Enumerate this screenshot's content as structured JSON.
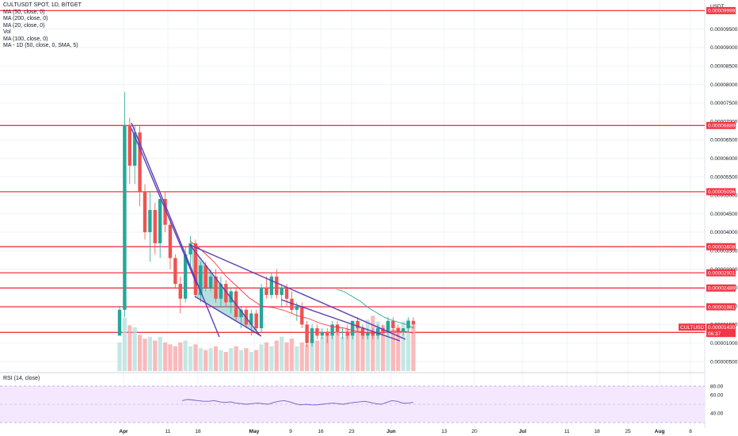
{
  "header": {
    "symbol_line": "CULTUSDT SPOT, 1D, BITGET",
    "indicators": [
      "MA (50, close, 0)",
      "MA (200, close, 0)",
      "MA (20, close, 0)",
      "Vol",
      "MA (100, close, 0)",
      "MA - 1D (50, close, 0, SMA, 5)"
    ],
    "currency": "USDT"
  },
  "rsi": {
    "label": "RSI (14, close)",
    "ticks": [
      "80.00",
      "60.00",
      "40.00"
    ]
  },
  "price_label": {
    "symbol": "CULTUSDT",
    "price": "0.00001430",
    "countdown": "06:37"
  },
  "colors": {
    "up": "#26a69a",
    "down": "#ef5350",
    "hline": "#f23645",
    "trendline": "#5b3fb5",
    "ma_red": "#f23645",
    "ma_teal": "#26a69a",
    "rsi_band": "#f3e8ff",
    "rsi_line": "#7e57c2"
  },
  "chart_data": {
    "type": "candlestick",
    "y_axis_ticks": [
      "0.00009500",
      "0.00009000",
      "0.00008500",
      "0.00008000",
      "0.00007500",
      "0.00007000",
      "0.00006500",
      "0.00006000",
      "0.00005500",
      "0.00005000",
      "0.00004500",
      "0.00004000",
      "0.00003500",
      "0.00003000",
      "0.00002500",
      "0.00002000",
      "0.00001500",
      "0.00001000",
      "0.00000500"
    ],
    "ylim": [
      3.5e-06,
      0.0001005
    ],
    "x_axis_ticks": [
      "Apr",
      "11",
      "18",
      "May",
      "9",
      "16",
      "23",
      "Jun",
      "13",
      "20",
      "Jul",
      "11",
      "18",
      "25",
      "Aug",
      "8"
    ],
    "horizontal_levels": [
      "0.00009999",
      "0.00006889",
      "0.00005096",
      "0.00003608",
      "0.00002901",
      "0.00002489",
      "0.00001981",
      "0.00001288"
    ],
    "candles": [
      {
        "o": 1.2,
        "h": 2.0,
        "l": 1.2,
        "c": 1.9
      },
      {
        "o": 1.9,
        "h": 7.8,
        "l": 1.7,
        "c": 6.9
      },
      {
        "o": 6.9,
        "h": 7.1,
        "l": 5.3,
        "c": 5.8
      },
      {
        "o": 5.8,
        "h": 6.9,
        "l": 5.3,
        "c": 6.7
      },
      {
        "o": 6.7,
        "h": 6.9,
        "l": 4.7,
        "c": 5.1
      },
      {
        "o": 5.1,
        "h": 5.3,
        "l": 3.8,
        "c": 4.0
      },
      {
        "o": 4.0,
        "h": 5.1,
        "l": 3.2,
        "c": 4.6
      },
      {
        "o": 4.6,
        "h": 4.8,
        "l": 3.4,
        "c": 3.7
      },
      {
        "o": 3.7,
        "h": 4.9,
        "l": 3.3,
        "c": 4.9
      },
      {
        "o": 4.9,
        "h": 5.1,
        "l": 4.0,
        "c": 4.2
      },
      {
        "o": 4.2,
        "h": 4.4,
        "l": 3.0,
        "c": 3.3
      },
      {
        "o": 3.3,
        "h": 3.4,
        "l": 2.5,
        "c": 2.6
      },
      {
        "o": 2.6,
        "h": 2.8,
        "l": 1.8,
        "c": 2.2
      },
      {
        "o": 2.2,
        "h": 3.6,
        "l": 2.1,
        "c": 3.4
      },
      {
        "o": 3.4,
        "h": 3.9,
        "l": 3.1,
        "c": 3.7
      },
      {
        "o": 3.7,
        "h": 3.8,
        "l": 2.3,
        "c": 2.3
      },
      {
        "o": 2.3,
        "h": 3.2,
        "l": 2.1,
        "c": 3.1
      },
      {
        "o": 3.1,
        "h": 3.2,
        "l": 2.4,
        "c": 2.5
      },
      {
        "o": 2.5,
        "h": 3.0,
        "l": 2.4,
        "c": 2.8
      },
      {
        "o": 2.8,
        "h": 3.0,
        "l": 2.1,
        "c": 2.2
      },
      {
        "o": 2.2,
        "h": 2.8,
        "l": 2.0,
        "c": 2.6
      },
      {
        "o": 2.6,
        "h": 2.7,
        "l": 2.0,
        "c": 2.1
      },
      {
        "o": 2.1,
        "h": 2.5,
        "l": 1.8,
        "c": 2.4
      },
      {
        "o": 2.4,
        "h": 2.5,
        "l": 1.6,
        "c": 1.7
      },
      {
        "o": 1.7,
        "h": 2.0,
        "l": 1.4,
        "c": 1.9
      },
      {
        "o": 1.9,
        "h": 2.0,
        "l": 1.4,
        "c": 1.5
      },
      {
        "o": 1.5,
        "h": 1.9,
        "l": 1.2,
        "c": 1.8
      },
      {
        "o": 1.8,
        "h": 1.9,
        "l": 1.3,
        "c": 1.4
      },
      {
        "o": 1.4,
        "h": 2.6,
        "l": 1.3,
        "c": 2.5
      },
      {
        "o": 2.5,
        "h": 2.8,
        "l": 2.2,
        "c": 2.3
      },
      {
        "o": 2.3,
        "h": 2.9,
        "l": 2.2,
        "c": 2.8
      },
      {
        "o": 2.8,
        "h": 3.0,
        "l": 2.2,
        "c": 2.3
      },
      {
        "o": 2.3,
        "h": 2.6,
        "l": 2.0,
        "c": 2.5
      },
      {
        "o": 2.5,
        "h": 2.6,
        "l": 2.0,
        "c": 2.2
      },
      {
        "o": 2.2,
        "h": 2.4,
        "l": 1.8,
        "c": 1.9
      },
      {
        "o": 1.9,
        "h": 2.1,
        "l": 1.6,
        "c": 2.0
      },
      {
        "o": 2.0,
        "h": 2.1,
        "l": 1.4,
        "c": 1.5
      },
      {
        "o": 1.5,
        "h": 1.6,
        "l": 0.9,
        "c": 1.0
      },
      {
        "o": 1.0,
        "h": 1.5,
        "l": 0.9,
        "c": 1.4
      },
      {
        "o": 1.4,
        "h": 1.5,
        "l": 1.1,
        "c": 1.2
      },
      {
        "o": 1.2,
        "h": 1.4,
        "l": 1.1,
        "c": 1.3
      },
      {
        "o": 1.3,
        "h": 1.4,
        "l": 1.0,
        "c": 1.2
      },
      {
        "o": 1.2,
        "h": 1.6,
        "l": 1.1,
        "c": 1.5
      },
      {
        "o": 1.5,
        "h": 1.6,
        "l": 1.2,
        "c": 1.3
      },
      {
        "o": 1.3,
        "h": 1.4,
        "l": 1.1,
        "c": 1.3
      },
      {
        "o": 1.3,
        "h": 1.5,
        "l": 1.1,
        "c": 1.2
      },
      {
        "o": 1.2,
        "h": 1.6,
        "l": 1.1,
        "c": 1.6
      },
      {
        "o": 1.6,
        "h": 1.7,
        "l": 1.3,
        "c": 1.4
      },
      {
        "o": 1.4,
        "h": 1.5,
        "l": 1.1,
        "c": 1.2
      },
      {
        "o": 1.2,
        "h": 1.4,
        "l": 1.1,
        "c": 1.3
      },
      {
        "o": 1.3,
        "h": 1.4,
        "l": 1.1,
        "c": 1.2
      },
      {
        "o": 1.2,
        "h": 1.5,
        "l": 1.1,
        "c": 1.4
      },
      {
        "o": 1.4,
        "h": 1.5,
        "l": 1.2,
        "c": 1.3
      },
      {
        "o": 1.3,
        "h": 1.7,
        "l": 1.2,
        "c": 1.6
      },
      {
        "o": 1.6,
        "h": 1.7,
        "l": 1.3,
        "c": 1.4
      },
      {
        "o": 1.4,
        "h": 1.5,
        "l": 1.2,
        "c": 1.3
      },
      {
        "o": 1.3,
        "h": 1.4,
        "l": 1.2,
        "c": 1.4
      },
      {
        "o": 1.4,
        "h": 1.7,
        "l": 1.3,
        "c": 1.6
      },
      {
        "o": 1.6,
        "h": 1.7,
        "l": 1.4,
        "c": 1.5
      }
    ],
    "volume": [
      0.3,
      0.56,
      0.48,
      0.46,
      0.38,
      0.34,
      0.36,
      0.32,
      0.36,
      0.3,
      0.28,
      0.26,
      0.3,
      0.32,
      0.26,
      0.28,
      0.24,
      0.22,
      0.24,
      0.26,
      0.22,
      0.2,
      0.24,
      0.26,
      0.22,
      0.24,
      0.2,
      0.22,
      0.28,
      0.3,
      0.26,
      0.32,
      0.36,
      0.3,
      0.34,
      0.26,
      0.3,
      0.28,
      0.34,
      0.32,
      0.36,
      0.38,
      0.4,
      0.42,
      0.36,
      0.44,
      0.48,
      0.5,
      0.46,
      0.54,
      0.58,
      0.52,
      0.48,
      0.5,
      0.44,
      0.46,
      0.52,
      0.54,
      0.48
    ],
    "rsi_values": [
      56,
      58,
      57,
      56,
      55,
      55,
      56,
      54,
      53,
      54,
      52,
      51,
      50,
      51,
      52,
      51,
      50,
      53,
      55,
      56,
      54,
      51,
      49,
      50,
      49,
      49,
      50,
      51,
      52,
      51,
      50,
      52,
      53,
      54,
      55,
      53,
      51,
      50,
      53,
      56,
      55,
      52,
      52,
      53
    ]
  }
}
